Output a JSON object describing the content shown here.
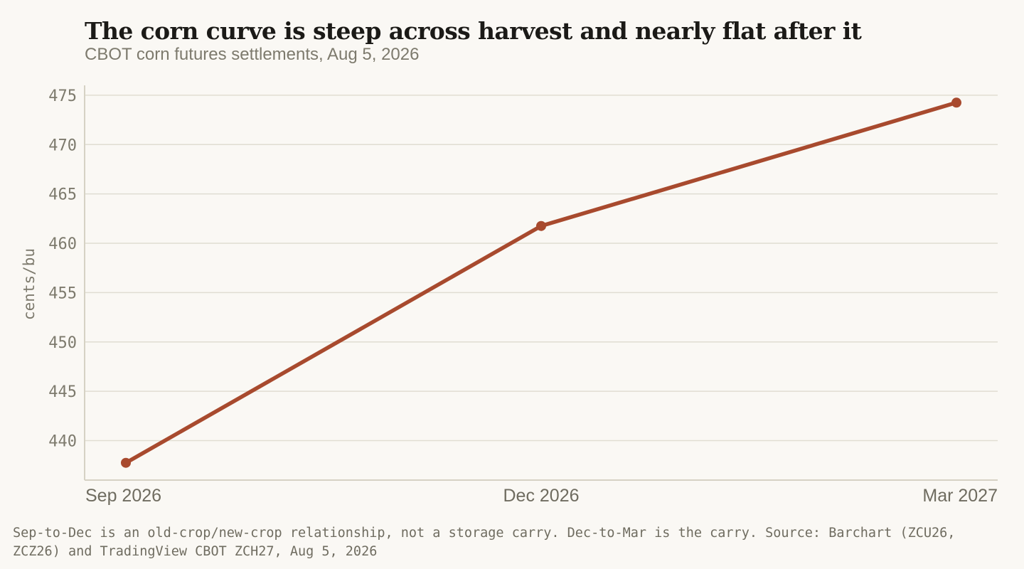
{
  "title": "The corn curve is steep across harvest and nearly flat after it",
  "subtitle": "CBOT corn futures settlements, Aug 5, 2026",
  "footnote": "Sep-to-Dec is an old-crop/new-crop relationship, not a storage carry. Dec-to-Mar is the carry.   Source: Barchart (ZCU26, ZCZ26) and TradingView CBOT ZCH27, Aug 5, 2026",
  "colors": {
    "line": "#a84a2e",
    "grid": "#e0ddd2",
    "axis": "#d6d2c4",
    "background": "#faf8f4"
  },
  "chart_data": {
    "type": "line",
    "categories": [
      "Sep 2026",
      "Dec 2026",
      "Mar 2027"
    ],
    "values": [
      437.75,
      461.75,
      474.25
    ],
    "ylabel": "cents/bu",
    "xlabel": "",
    "ylim": [
      436,
      476
    ],
    "yticks": [
      440,
      445,
      450,
      455,
      460,
      465,
      470,
      475
    ],
    "grid": true,
    "markers": true
  }
}
